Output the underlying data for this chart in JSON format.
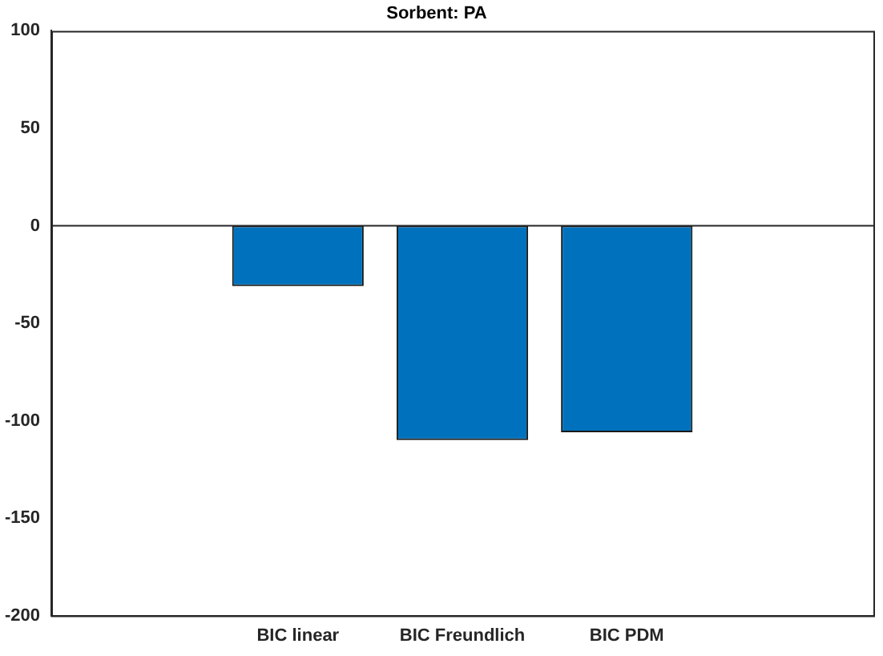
{
  "chart_data": {
    "type": "bar",
    "title": "Sorbent: PA",
    "categories": [
      null,
      "BIC linear",
      "BIC Freundlich",
      "BIC PDM",
      null
    ],
    "values": [
      null,
      -31,
      -110,
      -106,
      null
    ],
    "color": "#0072bd",
    "ylim": [
      -200,
      100
    ],
    "yticks": [
      -200,
      -150,
      -100,
      -50,
      0,
      50,
      100
    ],
    "grid": false,
    "legend": false,
    "ref_lines": [
      {
        "axis": "y",
        "value": 0,
        "color": "#262626"
      }
    ]
  }
}
